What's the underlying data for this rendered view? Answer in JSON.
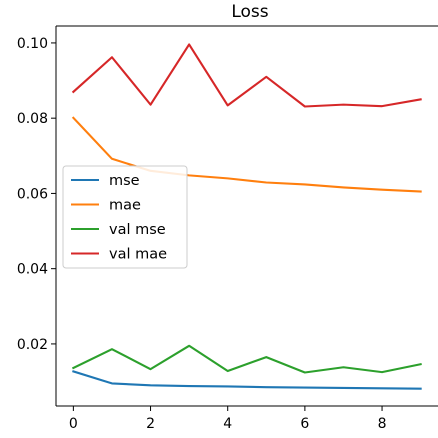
{
  "chart_data": {
    "type": "line",
    "title": "Loss",
    "xlabel": "",
    "ylabel": "",
    "x": [
      0,
      1,
      2,
      3,
      4,
      5,
      6,
      7,
      8,
      9
    ],
    "xlim": [
      -0.45,
      9.45
    ],
    "ylim": [
      0.0035,
      0.1045
    ],
    "xticks": [
      0,
      2,
      4,
      6,
      8
    ],
    "yticks": [
      0.02,
      0.04,
      0.06,
      0.08,
      0.1
    ],
    "ytick_labels": [
      "0.02",
      "0.04",
      "0.06",
      "0.08",
      "0.10"
    ],
    "xtick_labels": [
      "0",
      "2",
      "4",
      "6",
      "8"
    ],
    "grid": false,
    "legend_position": "center-left",
    "series": [
      {
        "name": "mse",
        "color": "#1f77b4",
        "values": [
          0.0127,
          0.0095,
          0.009,
          0.0088,
          0.0087,
          0.0085,
          0.0084,
          0.0083,
          0.0082,
          0.0081
        ]
      },
      {
        "name": "mae",
        "color": "#ff7f0e",
        "values": [
          0.0801,
          0.0692,
          0.066,
          0.0648,
          0.064,
          0.0629,
          0.0624,
          0.0616,
          0.061,
          0.0605
        ]
      },
      {
        "name": "val mse",
        "color": "#2ca02c",
        "values": [
          0.0136,
          0.0186,
          0.0133,
          0.0195,
          0.0128,
          0.0165,
          0.0124,
          0.0138,
          0.0125,
          0.0146
        ]
      },
      {
        "name": "val mae",
        "color": "#d62728",
        "values": [
          0.087,
          0.0962,
          0.0836,
          0.0996,
          0.0834,
          0.091,
          0.0831,
          0.0836,
          0.0832,
          0.085
        ]
      }
    ]
  }
}
